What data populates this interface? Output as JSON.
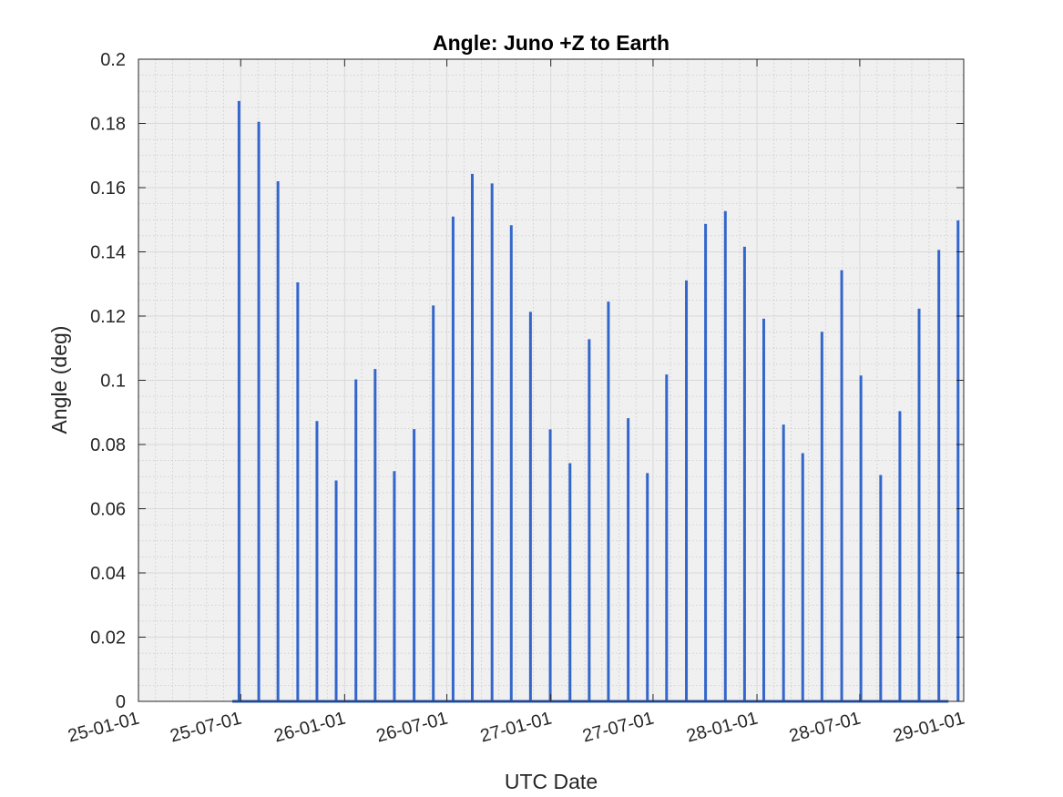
{
  "chart_data": {
    "type": "line",
    "title": "Angle: Juno +Z to Earth",
    "xlabel": "UTC Date",
    "ylabel": "Angle (deg)",
    "x_axis": {
      "scale": "date",
      "range": [
        "2025-01-01",
        "2029-01-01"
      ],
      "ticks": [
        "2025-01-01",
        "2025-07-01",
        "2026-01-01",
        "2026-07-01",
        "2027-01-01",
        "2027-07-01",
        "2028-01-01",
        "2028-07-01",
        "2029-01-01"
      ],
      "tick_labels": [
        "25-01-01",
        "25-07-01",
        "26-01-01",
        "26-07-01",
        "27-01-01",
        "27-07-01",
        "28-01-01",
        "28-07-01",
        "29-01-01"
      ]
    },
    "y_axis": {
      "range": [
        0,
        0.2
      ],
      "ticks": [
        0,
        0.02,
        0.04,
        0.06,
        0.08,
        0.1,
        0.12,
        0.14,
        0.16,
        0.18,
        0.2
      ],
      "tick_labels": [
        "0",
        "0.02",
        "0.04",
        "0.06",
        "0.08",
        "0.1",
        "0.12",
        "0.14",
        "0.16",
        "0.18",
        "0.2"
      ]
    },
    "grid": true,
    "minor_grid": true,
    "series": [
      {
        "color": "#3366cc",
        "baseline": {
          "x_start": "2025-06-16",
          "x_end": "2028-12-05",
          "y": 0
        },
        "spikes": [
          {
            "x": "2025-06-28",
            "y": 0.187
          },
          {
            "x": "2025-08-02",
            "y": 0.1805
          },
          {
            "x": "2025-09-05",
            "y": 0.162
          },
          {
            "x": "2025-10-10",
            "y": 0.1305
          },
          {
            "x": "2025-11-13",
            "y": 0.0873
          },
          {
            "x": "2025-12-17",
            "y": 0.0688
          },
          {
            "x": "2026-01-21",
            "y": 0.1003
          },
          {
            "x": "2026-02-24",
            "y": 0.1035
          },
          {
            "x": "2026-03-30",
            "y": 0.0717
          },
          {
            "x": "2026-05-04",
            "y": 0.0848
          },
          {
            "x": "2026-06-07",
            "y": 0.1233
          },
          {
            "x": "2026-07-12",
            "y": 0.151
          },
          {
            "x": "2026-08-15",
            "y": 0.1643
          },
          {
            "x": "2026-09-19",
            "y": 0.1613
          },
          {
            "x": "2026-10-23",
            "y": 0.1483
          },
          {
            "x": "2026-11-26",
            "y": 0.1213
          },
          {
            "x": "2026-12-31",
            "y": 0.0847
          },
          {
            "x": "2027-02-04",
            "y": 0.0742
          },
          {
            "x": "2027-03-10",
            "y": 0.1128
          },
          {
            "x": "2027-04-13",
            "y": 0.1245
          },
          {
            "x": "2027-05-18",
            "y": 0.0882
          },
          {
            "x": "2027-06-21",
            "y": 0.0711
          },
          {
            "x": "2027-07-25",
            "y": 0.1018
          },
          {
            "x": "2027-08-29",
            "y": 0.1311
          },
          {
            "x": "2027-10-02",
            "y": 0.1487
          },
          {
            "x": "2027-11-06",
            "y": 0.1527
          },
          {
            "x": "2027-12-10",
            "y": 0.1416
          },
          {
            "x": "2028-01-13",
            "y": 0.1192
          },
          {
            "x": "2028-02-17",
            "y": 0.0862
          },
          {
            "x": "2028-03-22",
            "y": 0.0773
          },
          {
            "x": "2028-04-25",
            "y": 0.1151
          },
          {
            "x": "2028-05-30",
            "y": 0.1343
          },
          {
            "x": "2028-07-03",
            "y": 0.1015
          },
          {
            "x": "2028-08-07",
            "y": 0.0705
          },
          {
            "x": "2028-09-10",
            "y": 0.0904
          },
          {
            "x": "2028-10-14",
            "y": 0.1223
          },
          {
            "x": "2028-11-18",
            "y": 0.1406
          },
          {
            "x": "2028-12-22",
            "y": 0.1498
          }
        ]
      }
    ]
  }
}
